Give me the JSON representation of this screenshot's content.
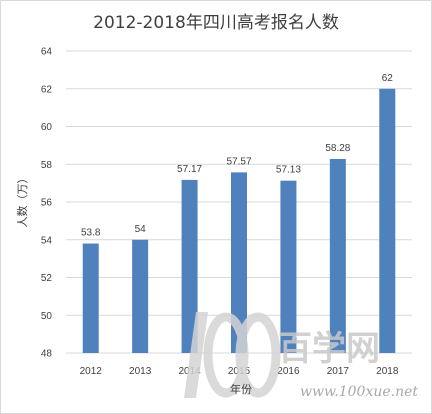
{
  "chart_data": {
    "type": "bar",
    "title": "2012-2018年四川高考报名人数",
    "xlabel": "年份",
    "ylabel": "人数（万）",
    "categories": [
      "2012",
      "2013",
      "2014",
      "2015",
      "2016",
      "2017",
      "2018"
    ],
    "values": [
      53.8,
      54,
      57.17,
      57.57,
      57.13,
      58.28,
      62
    ],
    "data_labels": [
      "53.8",
      "54",
      "57.17",
      "57.57",
      "57.13",
      "58.28",
      "62"
    ],
    "ylim": [
      48,
      64
    ],
    "yticks": [
      "48",
      "50",
      "52",
      "54",
      "56",
      "58",
      "60",
      "62",
      "64"
    ],
    "grid": "horizontal",
    "legend": "none",
    "bar_color": "#4f81bd"
  },
  "watermark": {
    "mark": "100",
    "name": "百学网",
    "url": "www.100xue.net"
  }
}
